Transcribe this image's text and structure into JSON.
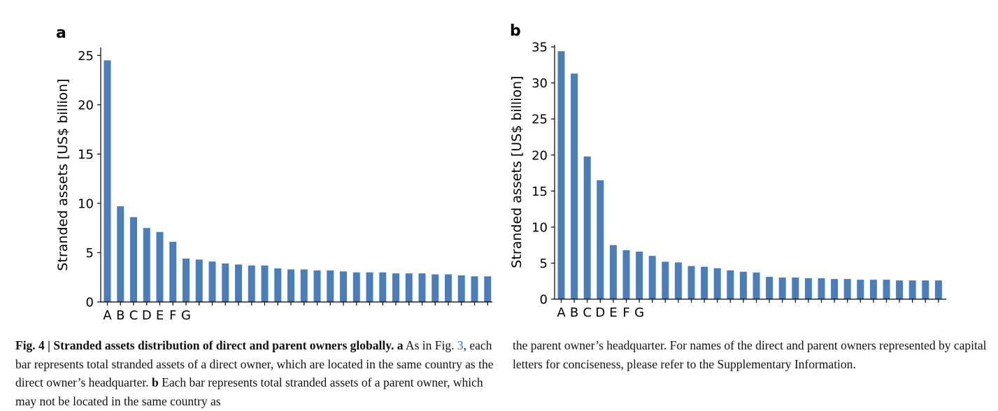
{
  "panels": {
    "a": {
      "label": "a"
    },
    "b": {
      "label": "b"
    }
  },
  "chart_data": [
    {
      "panel": "a",
      "type": "bar",
      "categories": [
        "A",
        "B",
        "C",
        "D",
        "E",
        "F",
        "G",
        "",
        "",
        "",
        "",
        "",
        "",
        "",
        "",
        "",
        "",
        "",
        "",
        "",
        "",
        "",
        "",
        "",
        "",
        "",
        "",
        "",
        "",
        ""
      ],
      "values": [
        24.5,
        9.7,
        8.6,
        7.5,
        7.1,
        6.1,
        4.4,
        4.3,
        4.1,
        3.9,
        3.8,
        3.7,
        3.7,
        3.4,
        3.3,
        3.3,
        3.2,
        3.2,
        3.1,
        3.0,
        3.0,
        3.0,
        2.9,
        2.9,
        2.9,
        2.8,
        2.8,
        2.7,
        2.6,
        2.6
      ],
      "ylabel": "Stranded assets [US$ billion]",
      "ylim": [
        0,
        25.8
      ],
      "yticks": [
        0,
        5,
        10,
        15,
        20,
        25
      ],
      "color": "#4a7ebb",
      "grid": false
    },
    {
      "panel": "b",
      "type": "bar",
      "categories": [
        "A",
        "B",
        "C",
        "D",
        "E",
        "F",
        "G",
        "",
        "",
        "",
        "",
        "",
        "",
        "",
        "",
        "",
        "",
        "",
        "",
        "",
        "",
        "",
        "",
        "",
        "",
        "",
        "",
        "",
        "",
        ""
      ],
      "values": [
        34.4,
        31.3,
        19.8,
        16.5,
        7.5,
        6.8,
        6.6,
        6.0,
        5.2,
        5.1,
        4.6,
        4.5,
        4.3,
        4.0,
        3.8,
        3.7,
        3.1,
        3.0,
        3.0,
        2.9,
        2.9,
        2.8,
        2.8,
        2.7,
        2.7,
        2.7,
        2.6,
        2.6,
        2.6,
        2.6
      ],
      "ylabel": "Stranded assets [US$ billion]",
      "ylim": [
        0,
        35.3
      ],
      "yticks": [
        0,
        5,
        10,
        15,
        20,
        25,
        30,
        35
      ],
      "color": "#4a7ebb",
      "grid": false
    }
  ],
  "caption": {
    "left": {
      "fig_label": "Fig. 4 | Stranded assets distribution of direct and parent owners globally.",
      "a_label": "a",
      "a_text_1": " As in Fig. ",
      "fig_ref": "3",
      "a_text_2": ", each bar represents total stranded assets of a direct owner, which are located in the same country as the direct owner’s headquarter. ",
      "b_label": "b",
      "b_text": " Each bar represents total stranded assets of a parent owner, which may not be located in the same country as"
    },
    "right": {
      "text": "the parent owner’s headquarter. For names of the direct and parent owners represented by capital letters for conciseness, please refer to the Supplementary Information."
    }
  }
}
